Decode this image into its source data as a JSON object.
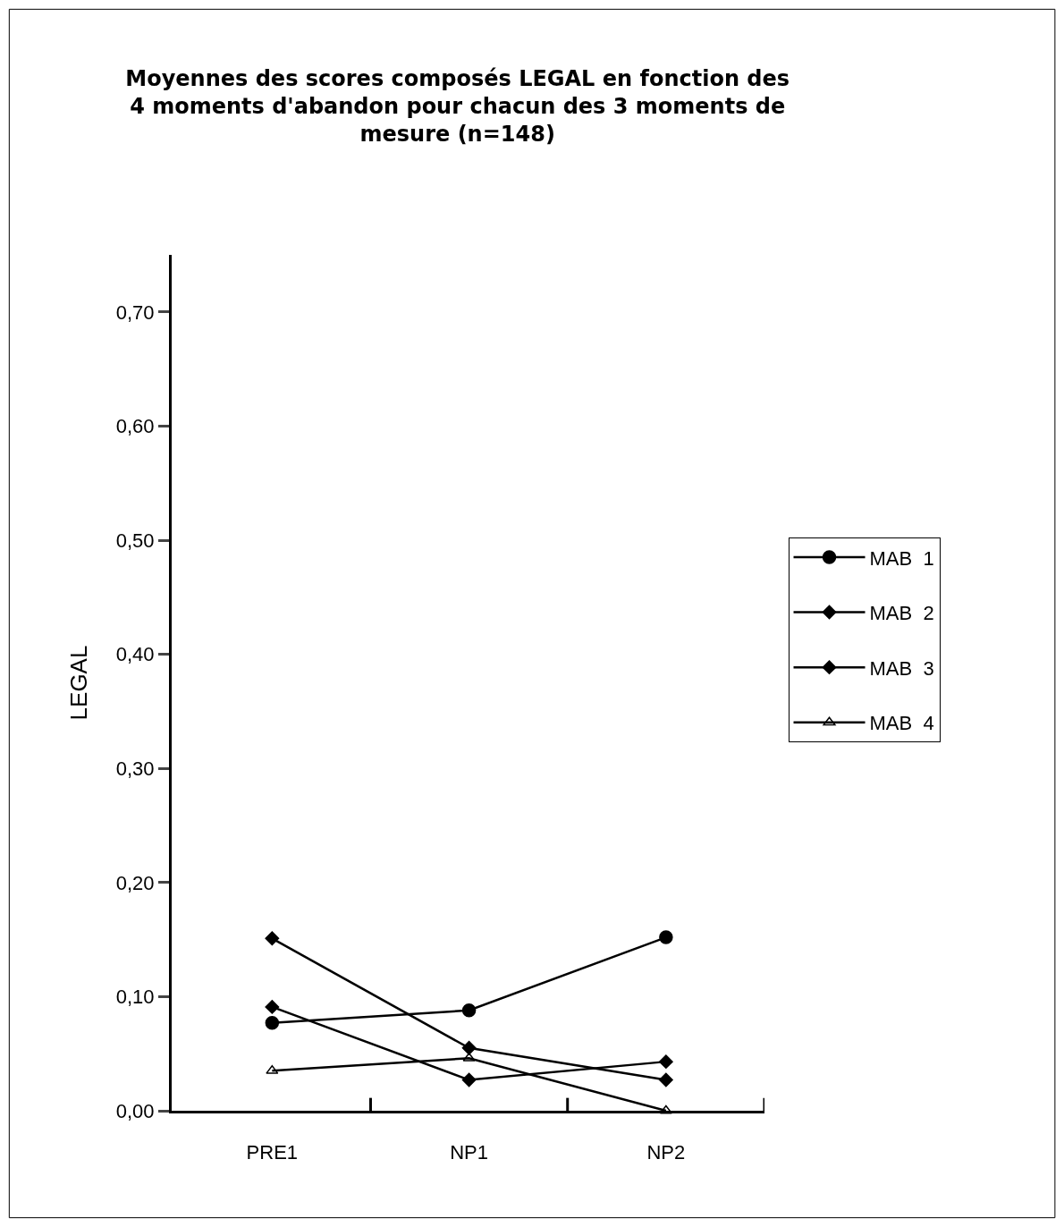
{
  "chart_data": {
    "type": "line",
    "title": "Moyennes des scores composés LEGAL en fonction des\n4 moments d'abandon pour chacun des 3 moments de\nmesure (n=148)",
    "ylabel": "LEGAL",
    "categories": [
      "PRE1",
      "NP1",
      "NP2"
    ],
    "series": [
      {
        "name": "MAB  1",
        "color": "#000000",
        "marker": "circle",
        "values": [
          0.077,
          0.088,
          0.152
        ]
      },
      {
        "name": "MAB  2",
        "color": "#000000",
        "marker": "diamond",
        "values": [
          0.151,
          0.055,
          0.027
        ]
      },
      {
        "name": "MAB  3",
        "color": "#000000",
        "marker": "diamond",
        "values": [
          0.091,
          0.027,
          0.043
        ]
      },
      {
        "name": "MAB  4",
        "color": "#000000",
        "marker": "triangle",
        "values": [
          0.035,
          0.046,
          0.0
        ]
      }
    ],
    "ylim": [
      0,
      0.75
    ],
    "yticks": [
      {
        "value": 0,
        "label": "0,00"
      },
      {
        "value": 0.1,
        "label": "0,10"
      },
      {
        "value": 0.2,
        "label": "0,20"
      },
      {
        "value": 0.3,
        "label": "0,30"
      },
      {
        "value": 0.4,
        "label": "0,40"
      },
      {
        "value": 0.5,
        "label": "0,50"
      },
      {
        "value": 0.6,
        "label": "0,60"
      },
      {
        "value": 0.7,
        "label": "0,70"
      }
    ],
    "legend": "right",
    "line_style": "solid"
  }
}
